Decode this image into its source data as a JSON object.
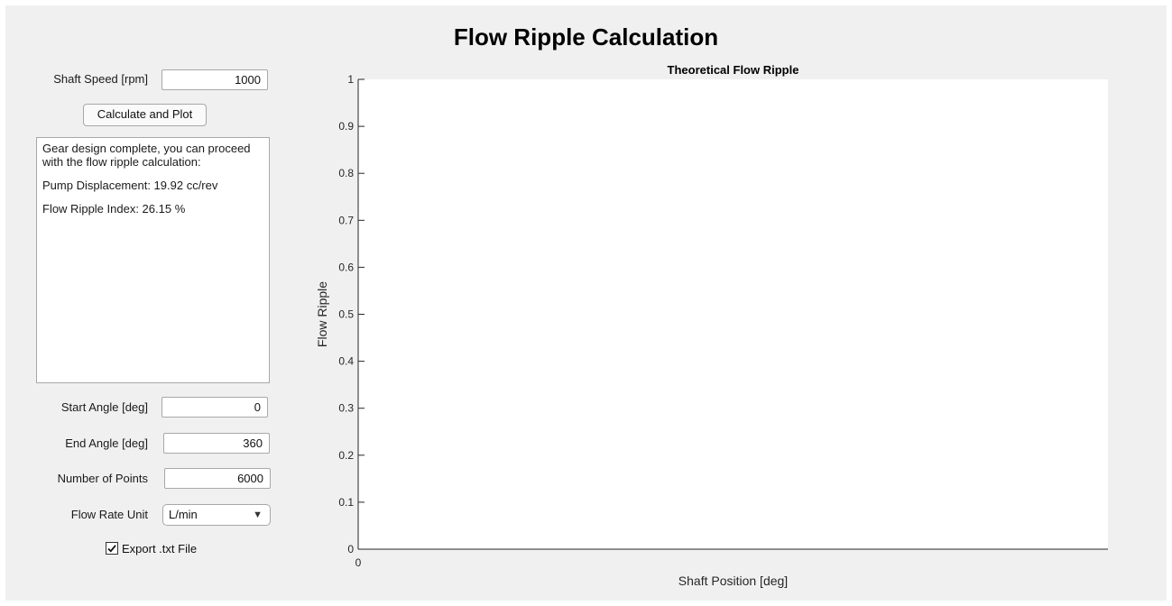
{
  "window": {
    "title": "Flow Ripple Calculation"
  },
  "controls": {
    "shaft_speed_label": "Shaft Speed [rpm]",
    "shaft_speed_value": "1000",
    "calc_button_label": "Calculate and Plot",
    "start_angle_label": "Start Angle [deg]",
    "start_angle_value": "0",
    "end_angle_label": "End Angle [deg]",
    "end_angle_value": "360",
    "num_points_label": "Number of Points",
    "num_points_value": "6000",
    "flow_unit_label": "Flow Rate Unit",
    "flow_unit_value": "L/min",
    "export_label": "Export .txt File",
    "export_checked": true
  },
  "output": {
    "message": "Gear design complete, you can proceed with the flow ripple calculation:",
    "displacement": "Pump Displacement: 19.92 cc/rev",
    "ripple_index": "Flow Ripple Index: 26.15 %"
  },
  "icons": {
    "dropdown_arrow": "▼",
    "checkmark": "check-icon"
  },
  "chart_data": {
    "type": "line",
    "title": "Theoretical Flow Ripple",
    "xlabel": "Shaft Position [deg]",
    "ylabel": "Flow Ripple",
    "xlim": [
      0,
      1
    ],
    "ylim": [
      0,
      1
    ],
    "x_ticks": [
      "0"
    ],
    "y_ticks": [
      "0",
      "0.1",
      "0.2",
      "0.3",
      "0.4",
      "0.5",
      "0.6",
      "0.7",
      "0.8",
      "0.9",
      "1"
    ],
    "series": [],
    "grid": false
  }
}
